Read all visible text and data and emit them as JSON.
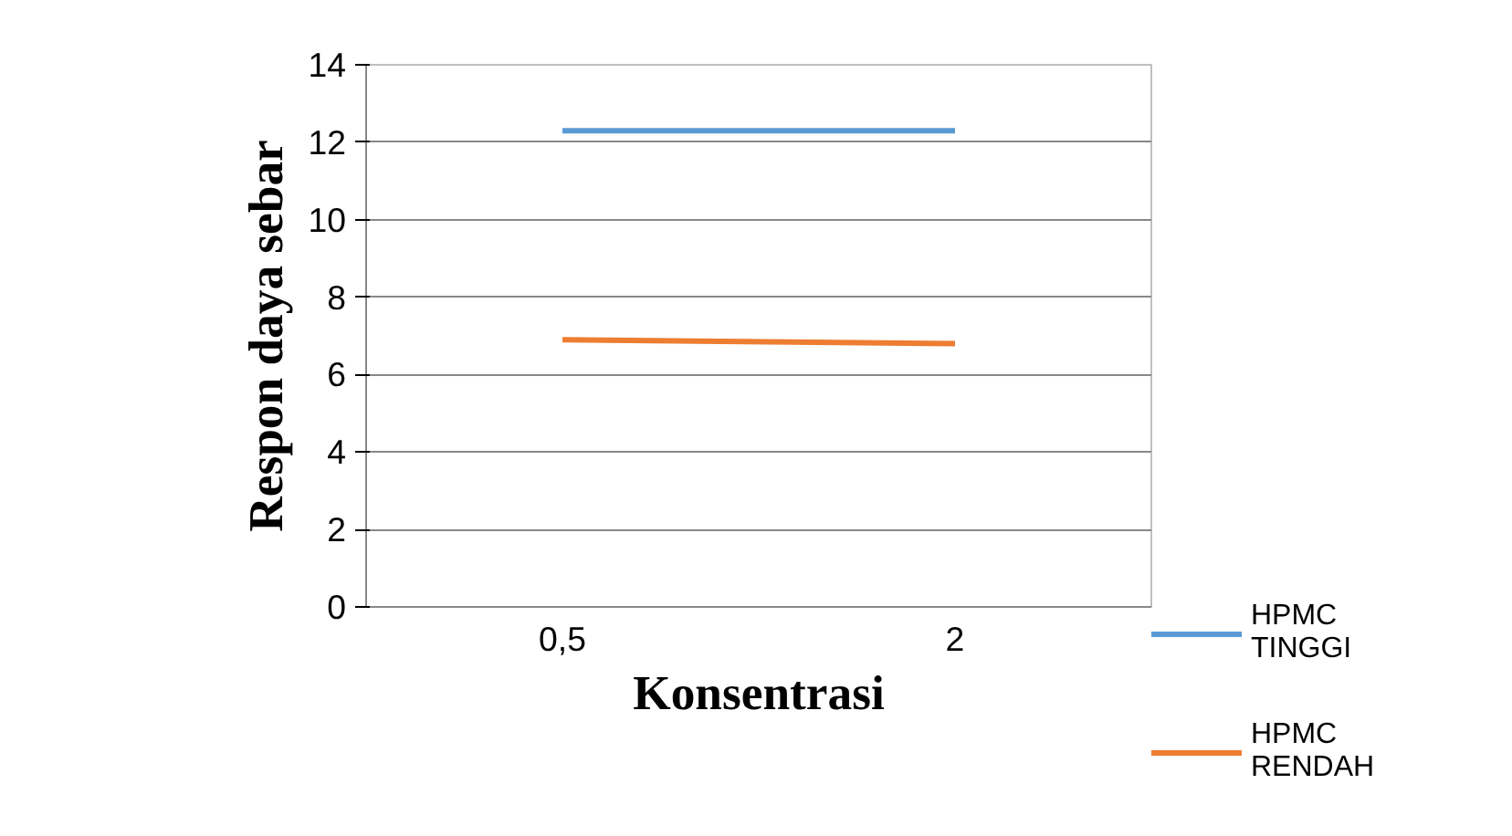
{
  "chart_data": {
    "type": "line",
    "xlabel": "Konsentrasi",
    "ylabel": "Respon daya sebar",
    "categories": [
      "0,5",
      "2"
    ],
    "series": [
      {
        "name": "HPMC TINGGI",
        "color": "#5b9bd5",
        "values": [
          12.3,
          12.3
        ]
      },
      {
        "name": "HPMC RENDAH",
        "color": "#ed7d31",
        "values": [
          6.9,
          6.8
        ]
      }
    ],
    "ylim": [
      0,
      14
    ],
    "yticks": [
      0,
      2,
      4,
      6,
      8,
      10,
      12,
      14
    ],
    "grid": "y",
    "legend": "right",
    "marker": "none",
    "line_style": "solid"
  }
}
